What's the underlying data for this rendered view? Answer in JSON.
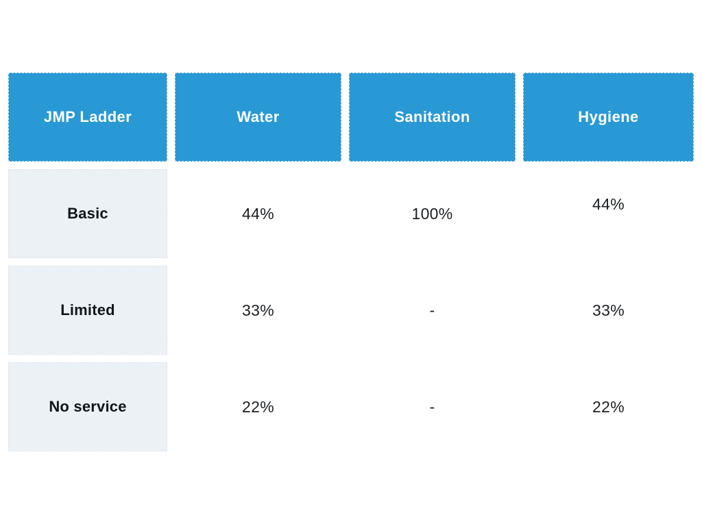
{
  "chart_data": {
    "type": "table",
    "columns": [
      "JMP Ladder",
      "Water",
      "Sanitation",
      "Hygiene"
    ],
    "rows": [
      [
        "Basic",
        "44%",
        "100%",
        "44%"
      ],
      [
        "Limited",
        "33%",
        "-",
        "33%"
      ],
      [
        "No service",
        "22%",
        "-",
        "22%"
      ]
    ]
  },
  "theme": {
    "page_bg": "#ffffff",
    "header_bg": "#2999d6",
    "header_text": "#ffffff",
    "label_bg": "#ecf1f6",
    "label_text": "#10151a",
    "value_text": "#1b1e21",
    "cell_border": "#dde3e8"
  }
}
